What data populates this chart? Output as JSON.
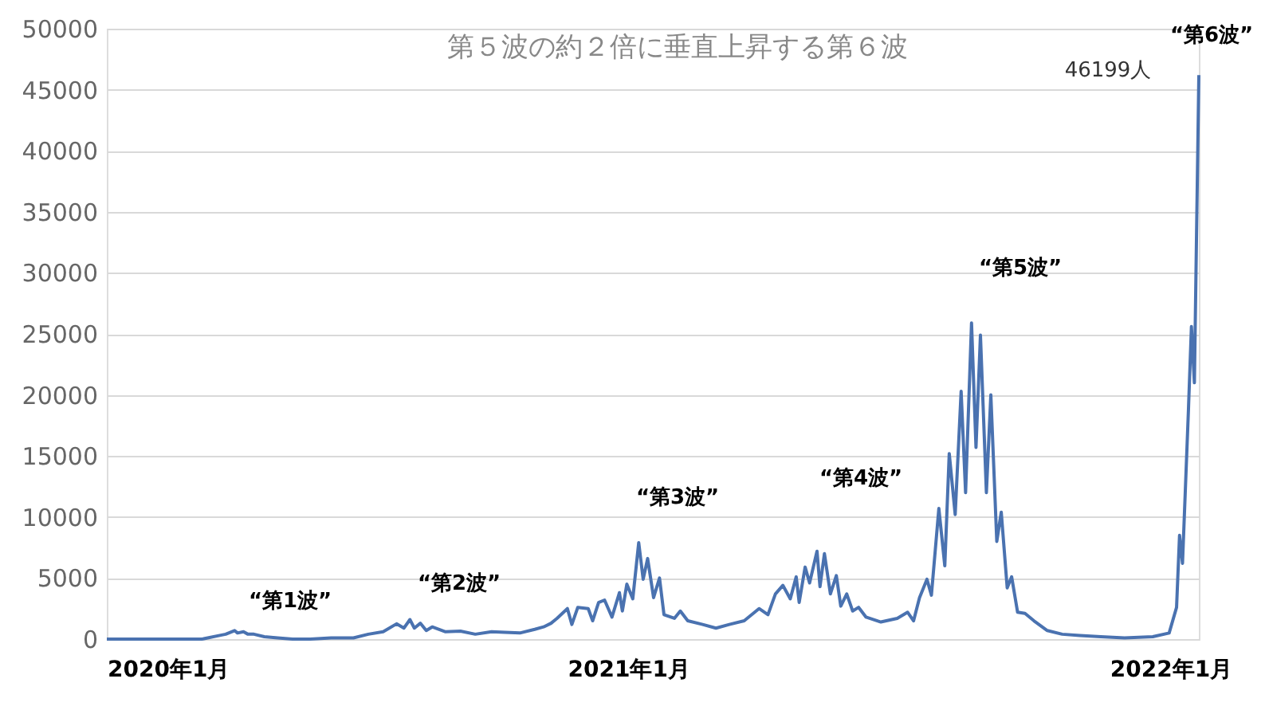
{
  "chart_data": {
    "type": "line",
    "title": "第５波の約２倍に垂直上昇する第６波",
    "x": [
      "2020-01-16",
      "2020-02-15",
      "2020-03-01",
      "2020-03-20",
      "2020-04-01",
      "2020-04-05",
      "2020-04-11",
      "2020-04-13",
      "2020-04-17",
      "2020-04-20",
      "2020-04-24",
      "2020-05-01",
      "2020-05-10",
      "2020-05-20",
      "2020-06-01",
      "2020-06-15",
      "2020-06-30",
      "2020-07-10",
      "2020-07-20",
      "2020-07-29",
      "2020-08-03",
      "2020-08-07",
      "2020-08-10",
      "2020-08-14",
      "2020-08-18",
      "2020-08-22",
      "2020-08-31",
      "2020-09-10",
      "2020-09-20",
      "2020-10-01",
      "2020-10-10",
      "2020-10-20",
      "2020-10-30",
      "2020-11-05",
      "2020-11-10",
      "2020-11-14",
      "2020-11-21",
      "2020-11-24",
      "2020-11-28",
      "2020-12-05",
      "2020-12-08",
      "2020-12-12",
      "2020-12-16",
      "2020-12-21",
      "2020-12-26",
      "2020-12-28",
      "2020-12-31",
      "2021-01-04",
      "2021-01-08",
      "2021-01-11",
      "2021-01-14",
      "2021-01-18",
      "2021-01-22",
      "2021-01-25",
      "2021-02-01",
      "2021-02-05",
      "2021-02-10",
      "2021-02-20",
      "2021-03-01",
      "2021-03-10",
      "2021-03-20",
      "2021-03-30",
      "2021-04-05",
      "2021-04-10",
      "2021-04-15",
      "2021-04-20",
      "2021-04-24",
      "2021-04-26",
      "2021-04-30",
      "2021-05-03",
      "2021-05-08",
      "2021-05-10",
      "2021-05-13",
      "2021-05-17",
      "2021-05-21",
      "2021-05-24",
      "2021-05-28",
      "2021-06-01",
      "2021-06-05",
      "2021-06-10",
      "2021-06-20",
      "2021-07-01",
      "2021-07-08",
      "2021-07-12",
      "2021-07-16",
      "2021-07-21",
      "2021-07-24",
      "2021-07-29",
      "2021-08-02",
      "2021-08-05",
      "2021-08-09",
      "2021-08-13",
      "2021-08-16",
      "2021-08-20",
      "2021-08-23",
      "2021-08-26",
      "2021-08-30",
      "2021-09-02",
      "2021-09-06",
      "2021-09-09",
      "2021-09-13",
      "2021-09-16",
      "2021-09-20",
      "2021-09-25",
      "2021-10-01",
      "2021-10-10",
      "2021-10-20",
      "2021-11-01",
      "2021-11-15",
      "2021-12-01",
      "2021-12-20",
      "2021-12-31",
      "2022-01-05",
      "2022-01-07",
      "2022-01-09",
      "2022-01-13",
      "2022-01-15",
      "2022-01-17",
      "2022-01-20"
    ],
    "series": [
      {
        "color": "#4a72b0",
        "values": [
          0,
          0,
          0,
          0,
          300,
          400,
          700,
          500,
          600,
          400,
          400,
          200,
          100,
          0,
          0,
          100,
          100,
          400,
          600,
          1250,
          900,
          1600,
          900,
          1300,
          700,
          1000,
          600,
          650,
          400,
          600,
          550,
          500,
          800,
          1000,
          1300,
          1700,
          2500,
          1200,
          2600,
          2500,
          1500,
          3000,
          3200,
          1800,
          3800,
          2300,
          4500,
          3300,
          7900,
          4900,
          6600,
          3400,
          5000,
          2000,
          1700,
          2300,
          1500,
          1200,
          900,
          1200,
          1500,
          2500,
          2000,
          3700,
          4400,
          3300,
          5100,
          3000,
          5900,
          4600,
          7200,
          4300,
          7000,
          3700,
          5200,
          2700,
          3700,
          2300,
          2600,
          1800,
          1400,
          1700,
          2200,
          1500,
          3400,
          4900,
          3600,
          10700,
          6000,
          15200,
          10200,
          20300,
          12000,
          25900,
          15700,
          24900,
          12000,
          20000,
          8000,
          10400,
          4200,
          5100,
          2200,
          2100,
          1500,
          700,
          400,
          300,
          200,
          100,
          200,
          500,
          2600,
          8500,
          6200,
          18800,
          25600,
          21000,
          46199
        ]
      }
    ],
    "xlim": [
      "2020-01-16",
      "2022-01-20"
    ],
    "xticks": [
      {
        "value": "2020-01-16",
        "label": "2020年1月"
      },
      {
        "value": "2021-01-01",
        "label": "2021年1月"
      },
      {
        "value": "2022-01-01",
        "label": "2022年1月"
      }
    ],
    "ylim": [
      0,
      50000
    ],
    "yticks": [
      0,
      5000,
      10000,
      15000,
      20000,
      25000,
      30000,
      35000,
      40000,
      45000,
      50000
    ],
    "grid": "y",
    "annotations": [
      "“第1波”",
      "“第2波”",
      "“第3波”",
      "“第4波”",
      "“第5波”",
      "“第6波”",
      "46199人"
    ]
  }
}
